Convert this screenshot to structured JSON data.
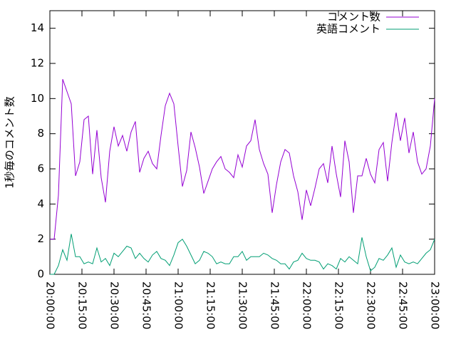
{
  "chart_data": {
    "type": "line",
    "y_label": "1秒毎のコメント数",
    "x": [
      "20:00:00",
      "20:02:00",
      "20:04:00",
      "20:06:00",
      "20:08:00",
      "20:10:00",
      "20:12:00",
      "20:14:00",
      "20:16:00",
      "20:18:00",
      "20:20:00",
      "20:22:00",
      "20:24:00",
      "20:26:00",
      "20:28:00",
      "20:30:00",
      "20:32:00",
      "20:34:00",
      "20:36:00",
      "20:38:00",
      "20:40:00",
      "20:42:00",
      "20:44:00",
      "20:46:00",
      "20:48:00",
      "20:50:00",
      "20:52:00",
      "20:54:00",
      "20:56:00",
      "20:58:00",
      "21:00:00",
      "21:02:00",
      "21:04:00",
      "21:06:00",
      "21:08:00",
      "21:10:00",
      "21:12:00",
      "21:14:00",
      "21:16:00",
      "21:18:00",
      "21:20:00",
      "21:22:00",
      "21:24:00",
      "21:26:00",
      "21:28:00",
      "21:30:00",
      "21:32:00",
      "21:34:00",
      "21:36:00",
      "21:38:00",
      "21:40:00",
      "21:42:00",
      "21:44:00",
      "21:46:00",
      "21:48:00",
      "21:50:00",
      "21:52:00",
      "21:54:00",
      "21:56:00",
      "21:58:00",
      "22:00:00",
      "22:02:00",
      "22:04:00",
      "22:06:00",
      "22:08:00",
      "22:10:00",
      "22:12:00",
      "22:14:00",
      "22:16:00",
      "22:18:00",
      "22:20:00",
      "22:22:00",
      "22:24:00",
      "22:26:00",
      "22:28:00",
      "22:30:00",
      "22:32:00",
      "22:34:00",
      "22:36:00",
      "22:38:00",
      "22:40:00",
      "22:42:00",
      "22:44:00",
      "22:46:00",
      "22:48:00",
      "22:50:00",
      "22:52:00",
      "22:54:00",
      "22:56:00",
      "22:58:00",
      "23:00:00"
    ],
    "series": [
      {
        "name": "コメント数",
        "color": "#9400d3",
        "values": [
          2.0,
          2.0,
          4.5,
          11.1,
          10.4,
          9.7,
          5.6,
          6.4,
          8.8,
          9.0,
          5.7,
          8.2,
          5.5,
          4.1,
          7.0,
          8.4,
          7.3,
          7.9,
          7.0,
          8.1,
          8.7,
          5.8,
          6.6,
          7.0,
          6.3,
          6.0,
          7.9,
          9.6,
          10.3,
          9.7,
          7.3,
          5.0,
          5.9,
          8.1,
          7.2,
          6.1,
          4.6,
          5.3,
          6.0,
          6.4,
          6.7,
          6.0,
          5.8,
          5.5,
          6.8,
          6.1,
          7.3,
          7.6,
          8.8,
          7.1,
          6.3,
          5.7,
          3.5,
          5.1,
          6.4,
          7.1,
          6.9,
          5.6,
          4.7,
          3.1,
          4.8,
          3.9,
          4.9,
          6.0,
          6.3,
          5.2,
          7.3,
          5.7,
          4.4,
          7.6,
          6.4,
          3.5,
          5.6,
          5.6,
          6.6,
          5.7,
          5.2,
          7.1,
          7.5,
          5.3,
          7.5,
          9.2,
          7.6,
          8.9,
          6.9,
          8.1,
          6.4,
          5.7,
          6.0,
          7.3,
          10.0
        ]
      },
      {
        "name": "英語コメント",
        "color": "#009e73",
        "values": [
          0,
          0,
          0.5,
          1.4,
          0.8,
          2.3,
          1.0,
          1.0,
          0.6,
          0.7,
          0.6,
          1.5,
          0.7,
          0.9,
          0.5,
          1.2,
          1.0,
          1.3,
          1.6,
          1.5,
          0.9,
          1.2,
          0.9,
          0.7,
          1.1,
          1.3,
          0.9,
          0.8,
          0.5,
          1.1,
          1.8,
          2.0,
          1.6,
          1.1,
          0.6,
          0.8,
          1.3,
          1.2,
          1.0,
          0.6,
          0.7,
          0.6,
          0.6,
          1.0,
          1.0,
          1.3,
          0.8,
          1.0,
          1.0,
          1.0,
          1.2,
          1.1,
          0.9,
          0.8,
          0.6,
          0.6,
          0.3,
          0.7,
          0.8,
          1.2,
          0.9,
          0.8,
          0.8,
          0.7,
          0.3,
          0.6,
          0.5,
          0.3,
          0.9,
          0.7,
          1.0,
          0.8,
          0.6,
          2.1,
          1.0,
          0.2,
          0.4,
          0.9,
          0.8,
          1.1,
          1.5,
          0.4,
          1.1,
          0.7,
          0.6,
          0.7,
          0.6,
          0.9,
          1.2,
          1.4,
          2.0
        ]
      }
    ],
    "xlim": [
      "20:00:00",
      "23:00:00"
    ],
    "xticks": [
      "20:00:00",
      "20:15:00",
      "20:30:00",
      "20:45:00",
      "21:00:00",
      "21:15:00",
      "21:30:00",
      "21:45:00",
      "22:00:00",
      "22:15:00",
      "22:30:00",
      "22:45:00",
      "23:00:00"
    ],
    "ylim": [
      0,
      15
    ],
    "yticks": [
      0,
      2,
      4,
      6,
      8,
      10,
      12,
      14
    ],
    "legend": "top-right"
  }
}
